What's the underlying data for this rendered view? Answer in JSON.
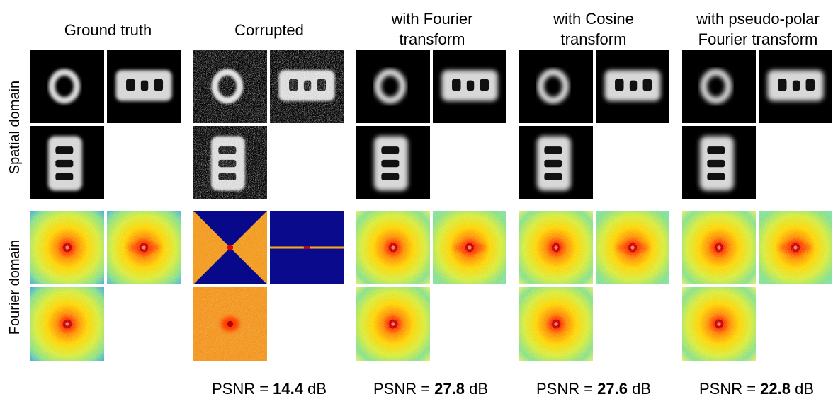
{
  "columns": [
    {
      "title": "Ground truth"
    },
    {
      "title": "Corrupted"
    },
    {
      "title": "with Fourier\ntransform"
    },
    {
      "title": "with Cosine\ntransform"
    },
    {
      "title": "with pseudo-polar\nFourier transform"
    }
  ],
  "rows": [
    {
      "label": "Spatial domain"
    },
    {
      "label": "Fourier domain"
    }
  ],
  "psnr": [
    {
      "prefix": "PSNR = ",
      "value": "14.4",
      "unit": " dB"
    },
    {
      "prefix": "PSNR = ",
      "value": "27.8",
      "unit": " dB"
    },
    {
      "prefix": "PSNR = ",
      "value": "27.6",
      "unit": " dB"
    },
    {
      "prefix": "PSNR = ",
      "value": "22.8",
      "unit": " dB"
    }
  ]
}
